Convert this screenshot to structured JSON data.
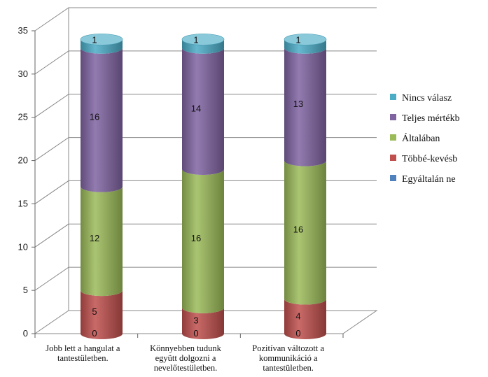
{
  "chart_data": {
    "type": "bar",
    "stacked": true,
    "style": "3d-cylinder",
    "categories": [
      [
        "Jobb lett a hangulat a",
        "tantestületben."
      ],
      [
        "Könnyebben tudunk",
        "együtt dolgozni a",
        "nevelőtestületben."
      ],
      [
        "Pozitívan változott a",
        "kommunikáció a",
        "tantestületben."
      ]
    ],
    "ylim": [
      0,
      35
    ],
    "yticks": [
      0,
      5,
      10,
      15,
      20,
      25,
      30,
      35
    ],
    "grid": true,
    "legend_position": "right",
    "series": [
      {
        "name": "Egyáltalán ne",
        "color": "#4F81BD",
        "values": [
          0,
          0,
          0
        ]
      },
      {
        "name": "Többé-kevésb",
        "color": "#C0504D",
        "values": [
          5,
          3,
          4
        ]
      },
      {
        "name": "Általában",
        "color": "#9BBB59",
        "values": [
          12,
          16,
          16
        ]
      },
      {
        "name": "Teljes mértékb",
        "color": "#8064A2",
        "values": [
          16,
          14,
          13
        ]
      },
      {
        "name": "Nincs válasz",
        "color": "#4BACC6",
        "values": [
          1,
          1,
          1
        ]
      }
    ],
    "legend_order": [
      4,
      3,
      2,
      1,
      0
    ]
  }
}
